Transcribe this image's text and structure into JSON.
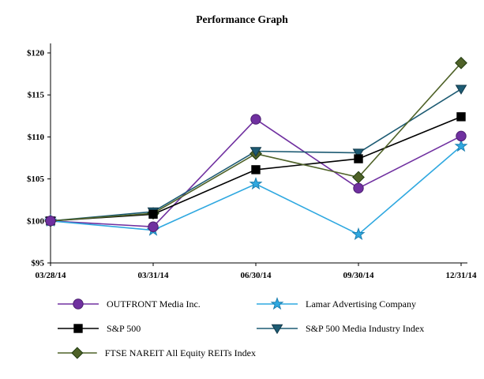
{
  "title": "Performance Graph",
  "chart_data": {
    "type": "line",
    "x": [
      "03/28/14",
      "03/31/14",
      "06/30/14",
      "09/30/14",
      "12/31/14"
    ],
    "series": [
      {
        "name": "OUTFRONT Media Inc.",
        "values": [
          100,
          99.3,
          112.1,
          103.9,
          110.1
        ],
        "color": "#7030A0",
        "marker": "circle",
        "marker_stroke": "#4B1F6F"
      },
      {
        "name": "Lamar Advertising Company",
        "values": [
          100,
          98.9,
          104.4,
          98.4,
          108.9
        ],
        "color": "#2FA8E0",
        "marker": "star",
        "marker_stroke": "#1C7FB0"
      },
      {
        "name": "S&P 500",
        "values": [
          100,
          100.8,
          106.1,
          107.4,
          112.4
        ],
        "color": "#000000",
        "marker": "square",
        "marker_stroke": "#000000"
      },
      {
        "name": "S&P 500 Media Industry Index",
        "values": [
          100,
          101.1,
          108.3,
          108.1,
          115.7
        ],
        "color": "#1D5B73",
        "marker": "triangle-down",
        "marker_stroke": "#12394A"
      },
      {
        "name": "FTSE NAREIT All Equity REITs Index",
        "values": [
          100,
          100.9,
          108.0,
          105.2,
          118.8
        ],
        "color": "#4F6228",
        "marker": "diamond",
        "marker_stroke": "#1E3A0E"
      }
    ],
    "ylim": [
      95,
      120
    ],
    "ytick_values": [
      95,
      100,
      105,
      110,
      115,
      120
    ],
    "ytick_labels": [
      "$95",
      "$100",
      "$105",
      "$110",
      "$115",
      "$120"
    ],
    "grid": false,
    "legend_position": "bottom"
  }
}
